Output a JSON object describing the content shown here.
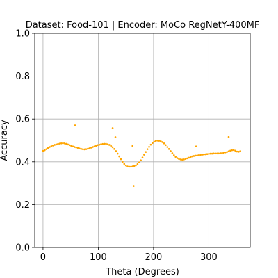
{
  "chart_data": {
    "type": "scatter",
    "title": "Dataset: Food-101 | Encoder: MoCo RegNetY-400MF",
    "xlabel": "Theta (Degrees)",
    "ylabel": "Accuracy",
    "xlim": [
      -15,
      375
    ],
    "ylim": [
      0,
      1
    ],
    "xticks": [
      0,
      100,
      200,
      300
    ],
    "yticks": [
      0.0,
      0.2,
      0.4,
      0.6,
      0.8,
      1.0
    ],
    "xtick_labels": [
      "0",
      "100",
      "200",
      "300"
    ],
    "ytick_labels": [
      "0.0",
      "0.2",
      "0.4",
      "0.6",
      "0.8",
      "1.0"
    ],
    "grid": true,
    "marker_color": "#ffa500",
    "series": [
      {
        "x": [
          0,
          3,
          6,
          9,
          12,
          15,
          18,
          21,
          24,
          27,
          30,
          33,
          36,
          39,
          42,
          45,
          48,
          51,
          54,
          57,
          60,
          63,
          66,
          69,
          72,
          75,
          78,
          81,
          84,
          87,
          90,
          93,
          96,
          99,
          102,
          105,
          108,
          111,
          114,
          117,
          120,
          123,
          126,
          129,
          132,
          135,
          138,
          141,
          144,
          147,
          150,
          153,
          156,
          159,
          162,
          165,
          168,
          171,
          174,
          177,
          180,
          183,
          186,
          189,
          192,
          195,
          198,
          201,
          204,
          207,
          210,
          213,
          216,
          219,
          222,
          225,
          228,
          231,
          234,
          237,
          240,
          243,
          246,
          249,
          252,
          255,
          258,
          261,
          264,
          267,
          270,
          273,
          276,
          279,
          282,
          285,
          288,
          291,
          294,
          297,
          300,
          303,
          306,
          309,
          312,
          315,
          318,
          321,
          324,
          327,
          330,
          333,
          336,
          339,
          342,
          345,
          348,
          351,
          354,
          357,
          58,
          126,
          131,
          162,
          164,
          277,
          336
        ],
        "y": [
          0.451,
          0.454,
          0.459,
          0.464,
          0.469,
          0.473,
          0.476,
          0.479,
          0.481,
          0.483,
          0.485,
          0.486,
          0.487,
          0.486,
          0.484,
          0.481,
          0.478,
          0.475,
          0.472,
          0.469,
          0.467,
          0.465,
          0.462,
          0.46,
          0.459,
          0.458,
          0.459,
          0.461,
          0.463,
          0.466,
          0.469,
          0.472,
          0.475,
          0.478,
          0.48,
          0.482,
          0.483,
          0.484,
          0.484,
          0.482,
          0.479,
          0.474,
          0.468,
          0.46,
          0.45,
          0.438,
          0.425,
          0.412,
          0.4,
          0.39,
          0.383,
          0.378,
          0.377,
          0.377,
          0.378,
          0.38,
          0.383,
          0.389,
          0.397,
          0.407,
          0.42,
          0.433,
          0.446,
          0.459,
          0.47,
          0.48,
          0.488,
          0.494,
          0.497,
          0.499,
          0.498,
          0.496,
          0.492,
          0.486,
          0.478,
          0.469,
          0.46,
          0.45,
          0.44,
          0.431,
          0.423,
          0.417,
          0.413,
          0.411,
          0.41,
          0.411,
          0.413,
          0.416,
          0.419,
          0.422,
          0.425,
          0.427,
          0.429,
          0.43,
          0.431,
          0.432,
          0.433,
          0.434,
          0.435,
          0.436,
          0.437,
          0.438,
          0.438,
          0.439,
          0.439,
          0.439,
          0.439,
          0.44,
          0.441,
          0.442,
          0.444,
          0.446,
          0.449,
          0.452,
          0.454,
          0.455,
          0.452,
          0.448,
          0.447,
          0.45,
          0.57,
          0.557,
          0.515,
          0.474,
          0.287,
          0.472,
          0.516
        ]
      }
    ]
  }
}
